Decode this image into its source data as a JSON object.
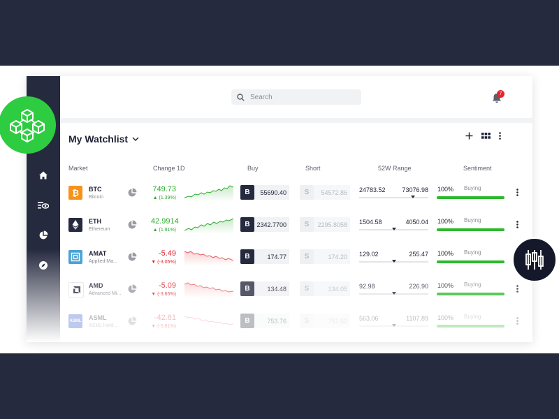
{
  "search": {
    "placeholder": "Search"
  },
  "notifications": {
    "count": "7"
  },
  "watchlist": {
    "title": "My Watchlist"
  },
  "columns": {
    "market": "Market",
    "change": "Change 1D",
    "buy": "Buy",
    "short": "Short",
    "range": "52W Range",
    "sentiment": "Sentiment"
  },
  "rows": [
    {
      "symbol": "BTC",
      "name": "Bitcoin",
      "change": "749.73",
      "change_pct": "▲ (1.39%)",
      "direction": "up",
      "buy_label": "B",
      "buy": "55690.40",
      "short_label": "S",
      "short": "54572.86",
      "range_low": "24783.52",
      "range_high": "73076.98",
      "range_position": 0.78,
      "sentiment_pct": "100%",
      "sentiment_label": "Buying",
      "sentiment_value": 1.0
    },
    {
      "symbol": "ETH",
      "name": "Ethereum",
      "change": "42.9914",
      "change_pct": "▲ (1.91%)",
      "direction": "up",
      "buy_label": "B",
      "buy": "2342.7700",
      "short_label": "S",
      "short": "2295.8058",
      "range_low": "1504.58",
      "range_high": "4050.04",
      "range_position": 0.5,
      "sentiment_pct": "100%",
      "sentiment_label": "Buying",
      "sentiment_value": 1.0
    },
    {
      "symbol": "AMAT",
      "name": "Applied Ma...",
      "change": "-5.49",
      "change_pct": "▼ (-3.05%)",
      "direction": "down",
      "buy_label": "B",
      "buy": "174.77",
      "short_label": "S",
      "short": "174.20",
      "range_low": "129.02",
      "range_high": "255.47",
      "range_position": 0.5,
      "sentiment_pct": "100%",
      "sentiment_label": "Buying",
      "sentiment_value": 1.0
    },
    {
      "symbol": "AMD",
      "name": "Advanced Mi...",
      "change": "-5.09",
      "change_pct": "▼ (-3.65%)",
      "direction": "down",
      "buy_label": "B",
      "buy": "134.48",
      "short_label": "S",
      "short": "134.05",
      "range_low": "92.98",
      "range_high": "226.90",
      "range_position": 0.5,
      "sentiment_pct": "100%",
      "sentiment_label": "Buying",
      "sentiment_value": 1.0
    },
    {
      "symbol": "ASML",
      "name": "ASML Hold...",
      "change": "-42.81",
      "change_pct": "▼ (-5.81%)",
      "direction": "down",
      "buy_label": "B",
      "buy": "753.76",
      "short_label": "S",
      "short": "751.52",
      "range_low": "563.06",
      "range_high": "1107.89",
      "range_position": 0.5,
      "sentiment_pct": "100%",
      "sentiment_label": "Buying",
      "sentiment_value": 1.0
    }
  ],
  "icons": {
    "sidebar": [
      "home-icon",
      "watchlist-icon",
      "portfolio-icon",
      "discover-icon"
    ],
    "header": [
      "add-icon",
      "grid-view-icon",
      "more-icon"
    ],
    "badges": [
      "blockchain-icon",
      "candlestick-icon"
    ]
  },
  "colors": {
    "navy": "#262a3f",
    "up": "#2eaa2e",
    "down": "#e2262f",
    "sentiment": "#2eb82e",
    "badge_green": "#2ecc40"
  }
}
